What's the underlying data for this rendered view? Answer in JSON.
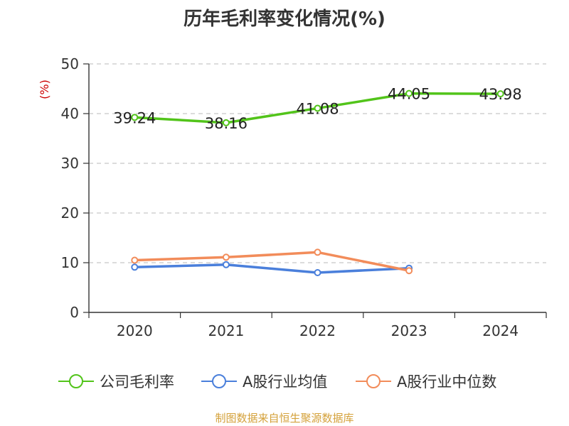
{
  "title": "历年毛利率变化情况(%)",
  "footer": "制图数据来自恒生聚源数据库",
  "colors": {
    "series1": "#52c41a",
    "series2": "#4a7fdb",
    "series3": "#f28c5a"
  },
  "chart_data": {
    "type": "line",
    "title": "历年毛利率变化情况(%)",
    "xlabel": "",
    "ylabel": "(%)",
    "categories": [
      "2020",
      "2021",
      "2022",
      "2023",
      "2024"
    ],
    "ylim": [
      0,
      50
    ],
    "yticks": [
      0,
      10,
      20,
      30,
      40,
      50
    ],
    "grid": true,
    "legend_position": "bottom",
    "series": [
      {
        "name": "公司毛利率",
        "values": [
          39.24,
          38.16,
          41.08,
          44.05,
          43.98
        ],
        "labels": [
          "39.24",
          "38.16",
          "41.08",
          "44.05",
          "43.98"
        ]
      },
      {
        "name": "A股行业均值",
        "values": [
          9.1,
          9.6,
          8.0,
          8.9,
          null
        ]
      },
      {
        "name": "A股行业中位数",
        "values": [
          10.5,
          11.1,
          12.1,
          8.4,
          null
        ]
      }
    ]
  }
}
